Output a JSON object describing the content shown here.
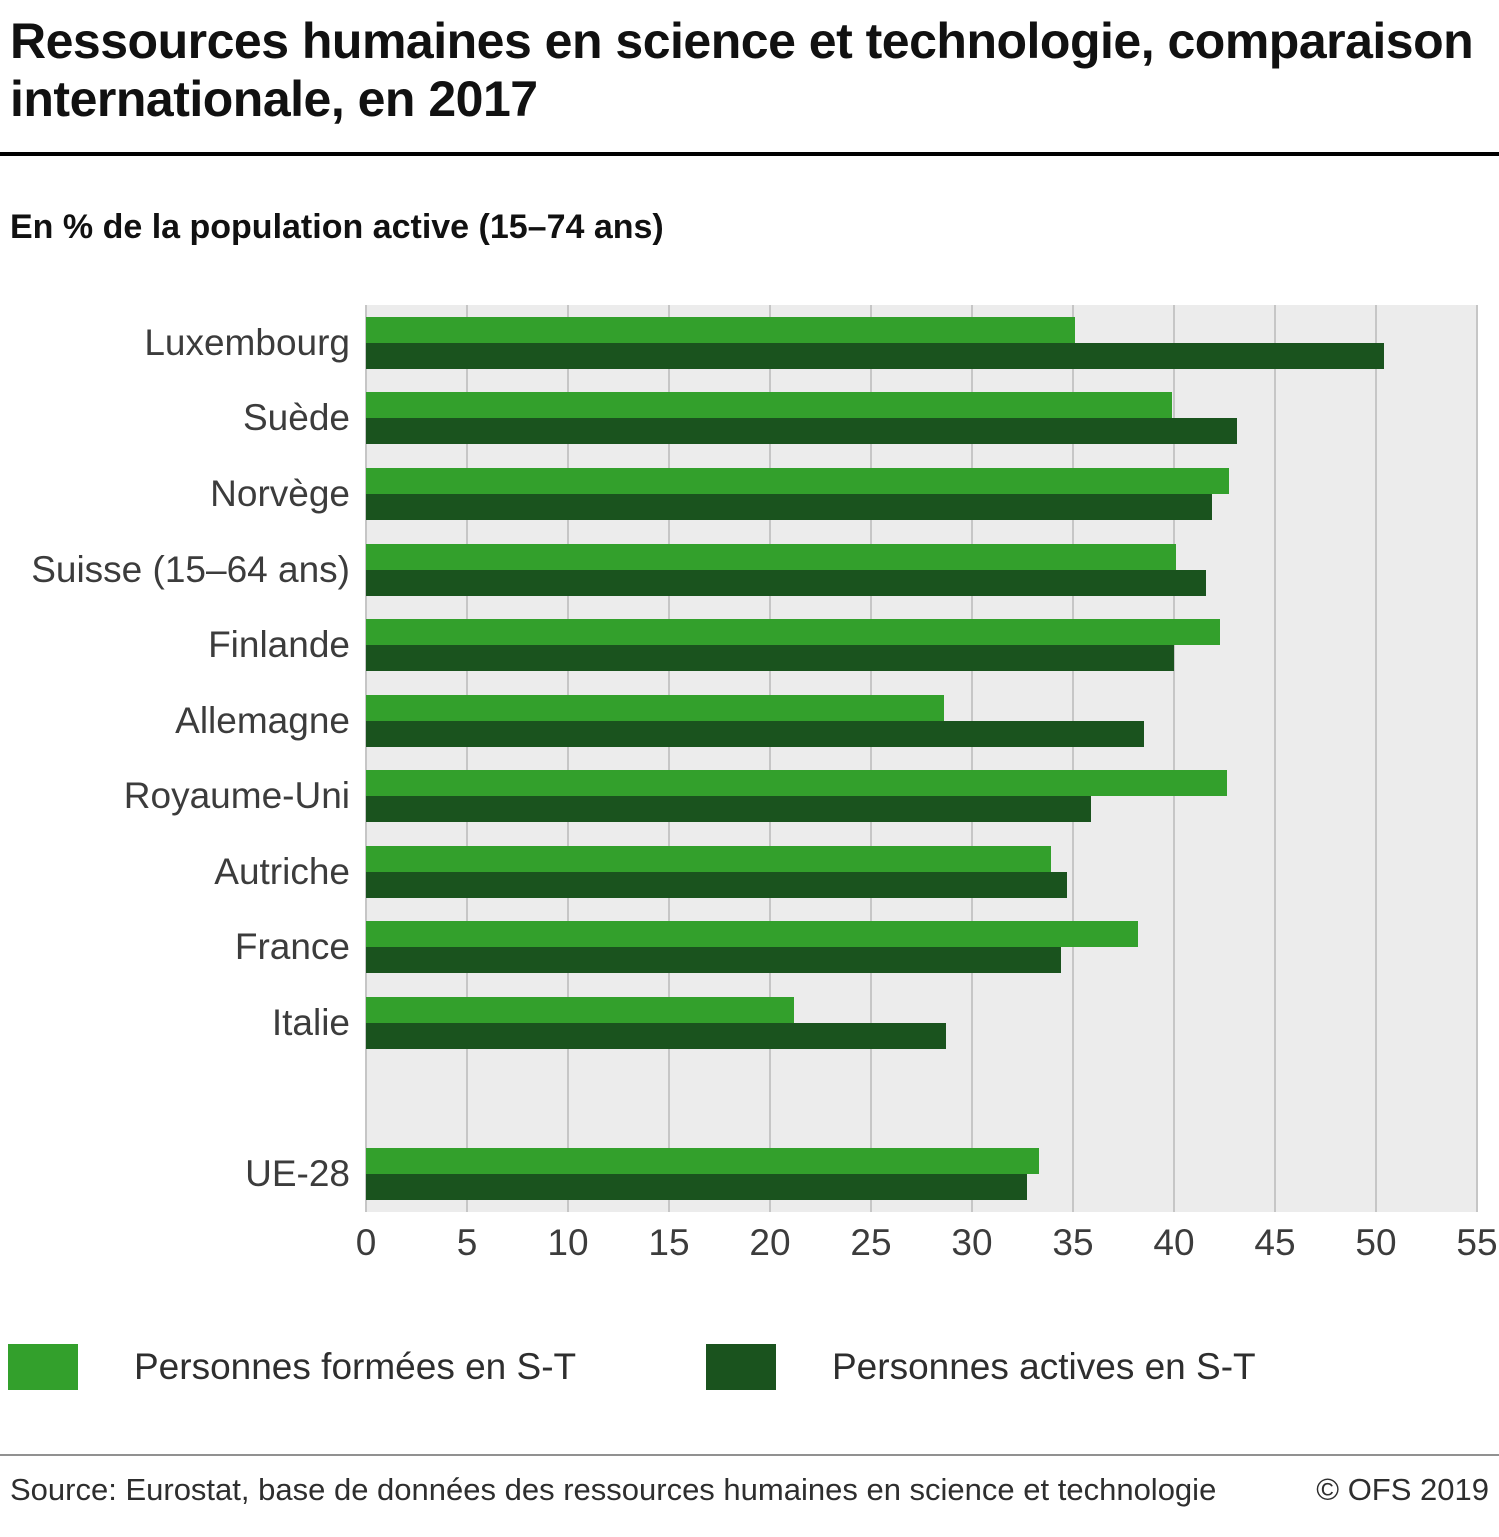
{
  "header": {
    "title": "Ressources humaines en science et technologie, comparaison internationale, en 2017",
    "subtitle": "En % de la population active (15–74 ans)"
  },
  "chart_data": {
    "type": "bar",
    "orientation": "horizontal",
    "title": "Ressources humaines en science et technologie, comparaison internationale, en 2017",
    "xlabel": "En % de la population active (15–74 ans)",
    "xlim": [
      0,
      55
    ],
    "xticks": [
      0,
      5,
      10,
      15,
      20,
      25,
      30,
      35,
      40,
      45,
      50,
      55
    ],
    "grid": true,
    "plot_background": "#ececec",
    "legend_position": "bottom",
    "categories": [
      "Luxembourg",
      "Suède",
      "Norvège",
      "Suisse (15–64 ans)",
      "Finlande",
      "Allemagne",
      "Royaume-Uni",
      "Autriche",
      "France",
      "Italie",
      "UE-28"
    ],
    "spacer_before_category": "UE-28",
    "series": [
      {
        "name": "Personnes formées en S-T",
        "color": "#33a02c",
        "values": [
          35.1,
          39.9,
          42.7,
          40.1,
          42.3,
          28.6,
          42.6,
          33.9,
          38.2,
          21.2,
          33.3
        ]
      },
      {
        "name": "Personnes actives en S-T",
        "color": "#1a531e",
        "values": [
          50.4,
          43.1,
          41.9,
          41.6,
          40.0,
          38.5,
          35.9,
          34.7,
          34.4,
          28.7,
          32.7
        ]
      }
    ]
  },
  "legend": {
    "items": [
      {
        "label": "Personnes formées en S-T",
        "color": "#33a02c"
      },
      {
        "label": "Personnes actives en S-T",
        "color": "#1a531e"
      }
    ]
  },
  "footer": {
    "source": "Source: Eurostat, base de données des ressources humaines en science et technologie",
    "copyright": "© OFS 2019"
  }
}
